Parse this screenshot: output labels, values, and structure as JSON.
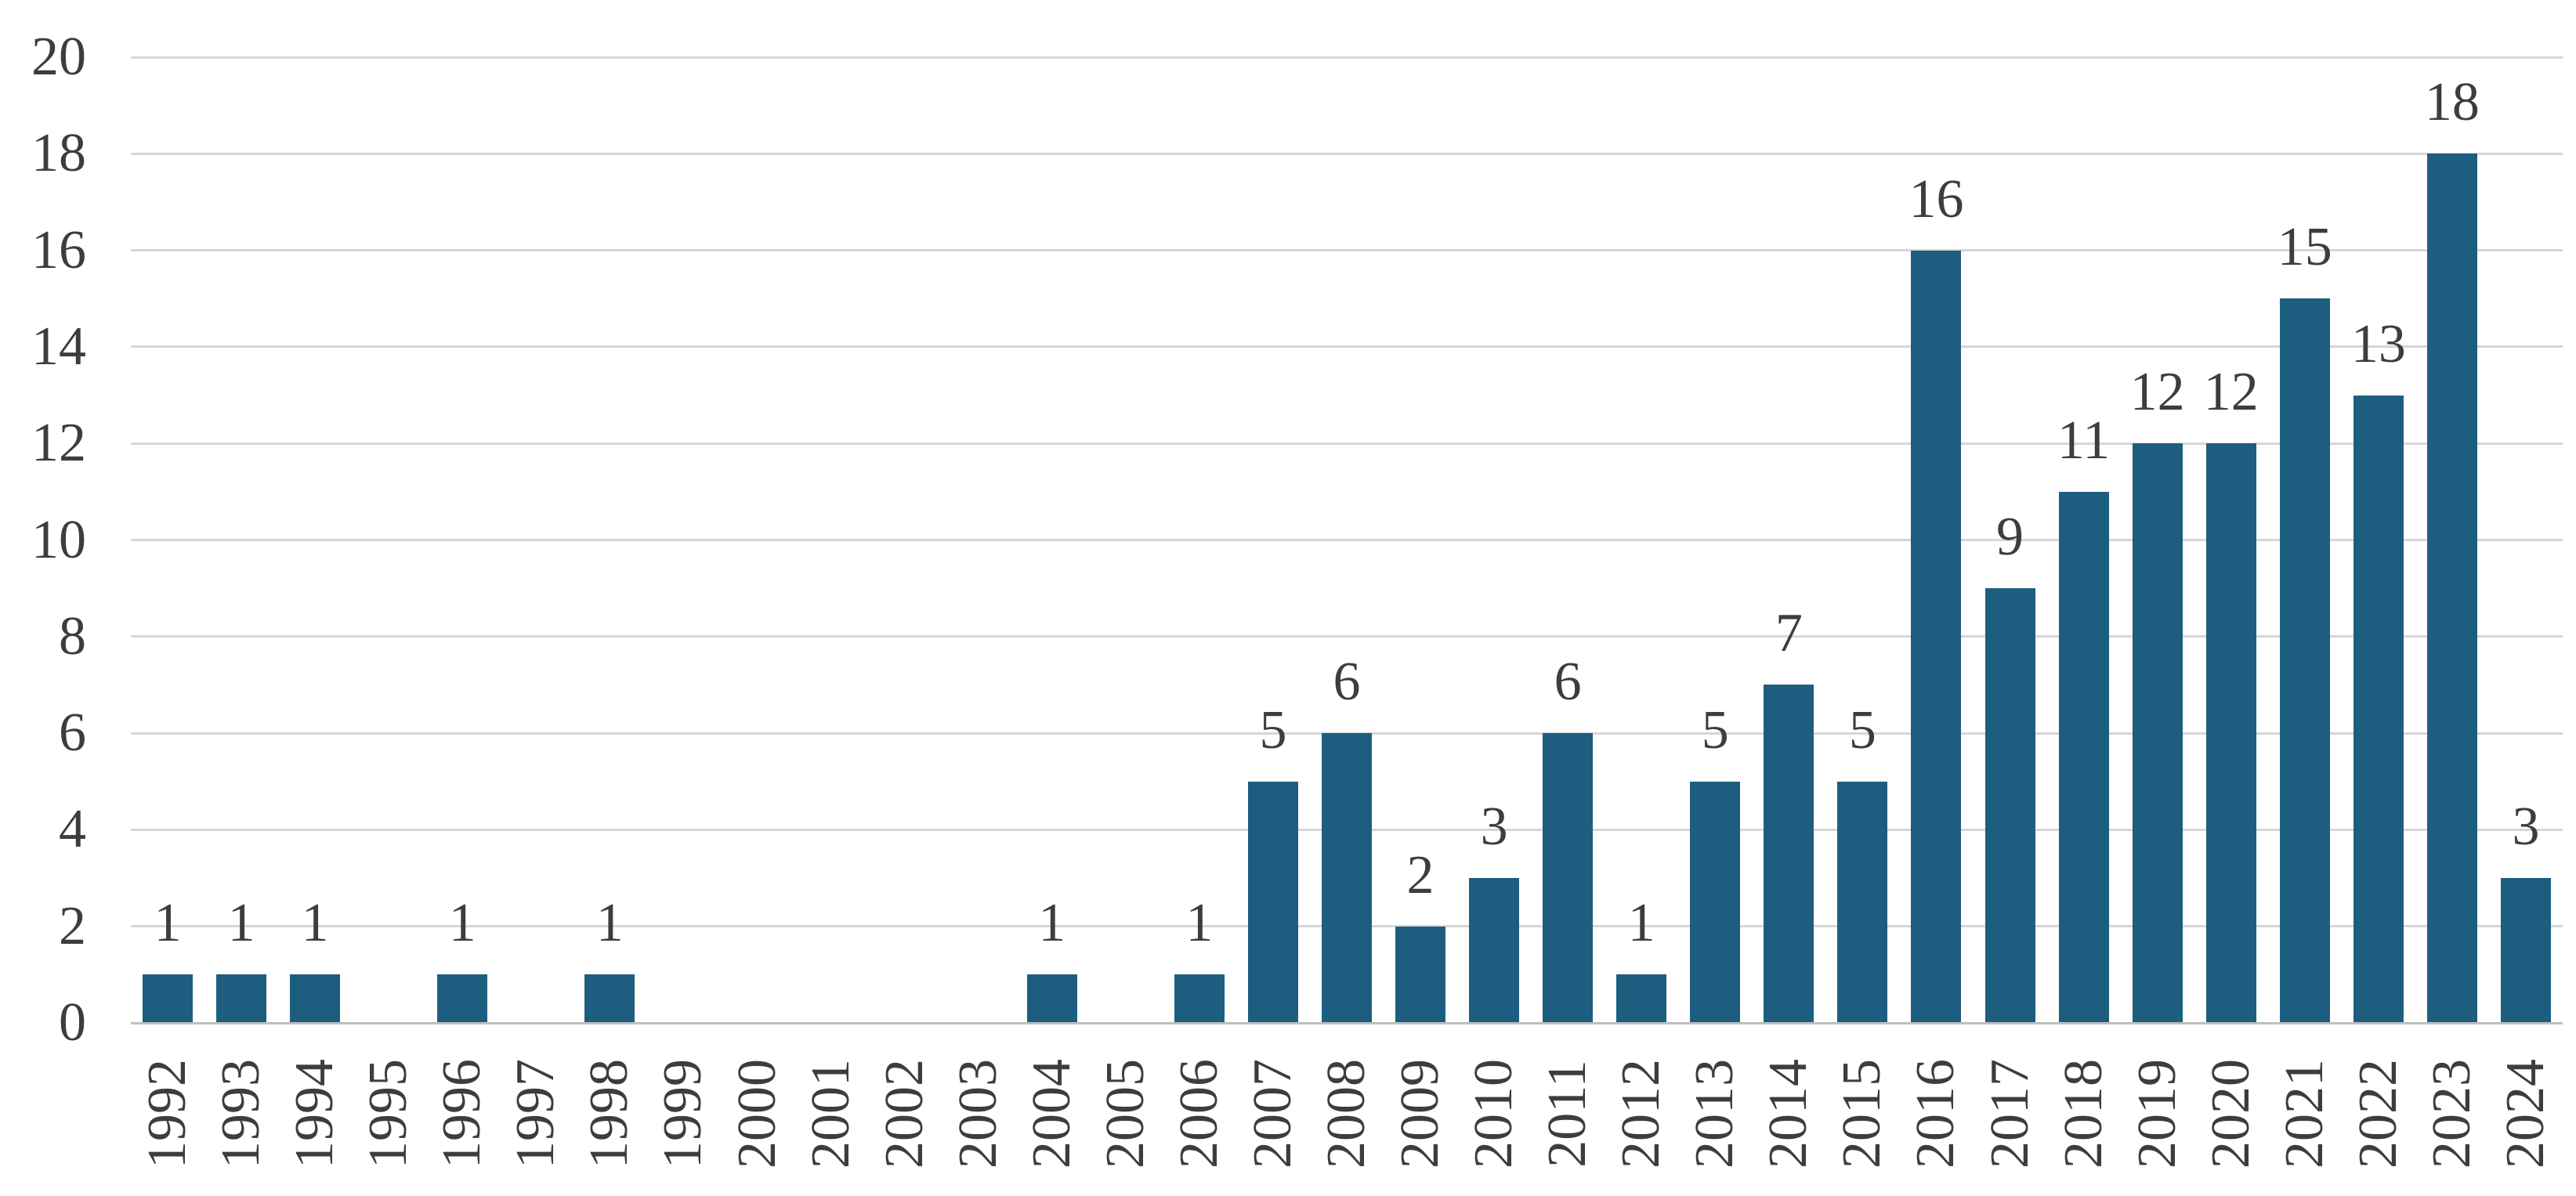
{
  "chart_data": {
    "type": "bar",
    "title": "",
    "xlabel": "",
    "ylabel": "",
    "categories": [
      "1992",
      "1993",
      "1994",
      "1995",
      "1996",
      "1997",
      "1998",
      "1999",
      "2000",
      "2001",
      "2002",
      "2003",
      "2004",
      "2005",
      "2006",
      "2007",
      "2008",
      "2009",
      "2010",
      "2011",
      "2012",
      "2013",
      "2014",
      "2015",
      "2016",
      "2017",
      "2018",
      "2019",
      "2020",
      "2021",
      "2022",
      "2023",
      "2024"
    ],
    "values": [
      1,
      1,
      1,
      0,
      1,
      0,
      1,
      0,
      0,
      0,
      0,
      0,
      1,
      0,
      1,
      5,
      6,
      2,
      3,
      6,
      1,
      5,
      7,
      5,
      16,
      9,
      11,
      12,
      12,
      15,
      13,
      18,
      3
    ],
    "ylim": [
      0,
      20
    ],
    "yticks": [
      0,
      2,
      4,
      6,
      8,
      10,
      12,
      14,
      16,
      18,
      20
    ],
    "grid": "horizontal",
    "legend_position": "none",
    "data_labels": "above non-zero bars",
    "colors": {
      "bar": "#1d5e80",
      "gridline": "#d6d6d6",
      "axis_line": "#bfbfbf",
      "text": "#3d3d3d"
    }
  }
}
